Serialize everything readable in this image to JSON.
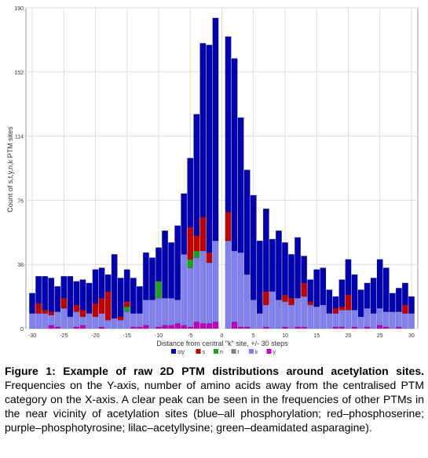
{
  "caption": {
    "title": "Figure 1: Example of raw 2D PTM distributions around acetylation sites.",
    "body": "Frequencies on the Y-axis, number of amino acids away from the centralised PTM category on the X-axis. A clear peak can be seen in the frequencies of other PTMs in the near vicinity of acetylation sites (blue–all phosphorylation; red–phosphoserine; purple–phosphotyrosine; lilac–acetyllysine; green–deamidated asparagine)."
  },
  "chart_data": {
    "type": "bar",
    "stacked": true,
    "title": "",
    "xlabel": "Distance from central \"k\" site, +/- 30 steps",
    "ylabel": "Count of s,t,y,n,k PTM sites",
    "ylim": [
      0,
      190
    ],
    "xlim": [
      -31,
      31
    ],
    "yticks": [
      0,
      38,
      76,
      114,
      152,
      190
    ],
    "xticks": [
      -30,
      -25,
      -20,
      -15,
      -10,
      -5,
      0,
      5,
      10,
      15,
      20,
      25,
      30
    ],
    "grid": true,
    "legend_position": "bottom",
    "x": [
      -30,
      -29,
      -28,
      -27,
      -26,
      -25,
      -24,
      -23,
      -22,
      -21,
      -20,
      -19,
      -18,
      -17,
      -16,
      -15,
      -14,
      -13,
      -12,
      -11,
      -10,
      -9,
      -8,
      -7,
      -6,
      -5,
      -4,
      -3,
      -2,
      -1,
      1,
      2,
      3,
      4,
      5,
      6,
      7,
      8,
      9,
      10,
      11,
      12,
      13,
      14,
      15,
      16,
      17,
      18,
      19,
      20,
      21,
      22,
      23,
      24,
      25,
      26,
      27,
      28,
      29,
      30
    ],
    "series": [
      {
        "name": "y",
        "color": "#c000c0",
        "values": [
          0,
          0,
          0,
          2,
          1,
          0,
          0,
          1,
          2,
          0,
          0,
          1,
          0,
          0,
          0,
          0,
          1,
          1,
          2,
          0,
          1,
          2,
          2,
          3,
          2,
          1,
          4,
          3,
          3,
          4,
          0,
          4,
          1,
          1,
          0,
          0,
          1,
          0,
          0,
          1,
          0,
          1,
          1,
          0,
          0,
          0,
          0,
          1,
          1,
          0,
          1,
          0,
          1,
          0,
          2,
          1,
          0,
          1,
          0,
          0
        ]
      },
      {
        "name": "k",
        "color": "#8080f0",
        "values": [
          9,
          9,
          9,
          6,
          9,
          12,
          7,
          9,
          5,
          9,
          7,
          8,
          5,
          6,
          5,
          10,
          8,
          8,
          15,
          17,
          17,
          16,
          16,
          14,
          42,
          35,
          38,
          43,
          36,
          48,
          52,
          42,
          44,
          31,
          17,
          9,
          13,
          22,
          17,
          15,
          14,
          17,
          18,
          14,
          13,
          14,
          9,
          8,
          10,
          11,
          10,
          7,
          11,
          9,
          10,
          9,
          10,
          9,
          9,
          9
        ]
      },
      {
        "name": "t",
        "color": "#808080",
        "values": [
          0,
          0,
          0,
          0,
          0,
          0,
          0,
          0,
          0,
          0,
          0,
          0,
          0,
          0,
          0,
          0,
          0,
          0,
          0,
          0,
          0,
          0,
          0,
          0,
          0,
          0,
          0,
          0,
          0,
          0,
          0,
          0,
          0,
          0,
          0,
          0,
          0,
          0,
          0,
          0,
          0,
          0,
          0,
          0,
          0,
          0,
          0,
          0,
          0,
          0,
          0,
          0,
          0,
          0,
          0,
          0,
          0,
          0,
          0,
          0
        ]
      },
      {
        "name": "n",
        "color": "#20a020",
        "values": [
          0,
          0,
          0,
          0,
          0,
          0,
          0,
          0,
          0,
          0,
          0,
          0,
          0,
          0,
          0,
          3,
          0,
          0,
          0,
          0,
          10,
          0,
          0,
          0,
          0,
          5,
          4,
          0,
          0,
          0,
          0,
          0,
          0,
          0,
          0,
          0,
          0,
          0,
          0,
          0,
          0,
          0,
          0,
          0,
          0,
          0,
          0,
          0,
          0,
          0,
          0,
          0,
          0,
          0,
          0,
          0,
          0,
          0,
          0,
          0
        ]
      },
      {
        "name": "s",
        "color": "#c00000",
        "values": [
          0,
          6,
          2,
          2,
          0,
          6,
          0,
          4,
          4,
          0,
          8,
          9,
          17,
          0,
          2,
          3,
          0,
          0,
          0,
          0,
          0,
          0,
          0,
          0,
          0,
          19,
          9,
          20,
          6,
          0,
          17,
          0,
          0,
          0,
          0,
          0,
          8,
          0,
          0,
          4,
          4,
          0,
          8,
          2,
          0,
          0,
          0,
          3,
          2,
          9,
          0,
          0,
          0,
          0,
          0,
          0,
          0,
          0,
          5,
          0
        ]
      },
      {
        "name": "sty",
        "color": "#0000b0",
        "values": [
          12,
          16,
          20,
          20,
          15,
          13,
          24,
          14,
          18,
          18,
          20,
          18,
          10,
          38,
          23,
          19,
          21,
          16,
          28,
          25,
          20,
          40,
          33,
          44,
          36,
          41,
          72,
          103,
          123,
          132,
          104,
          114,
          80,
          62,
          62,
          43,
          49,
          31,
          41,
          31,
          26,
          36,
          16,
          13,
          22,
          22,
          14,
          7,
          16,
          21,
          21,
          16,
          15,
          21,
          29,
          26,
          11,
          14,
          13,
          10
        ]
      }
    ]
  }
}
